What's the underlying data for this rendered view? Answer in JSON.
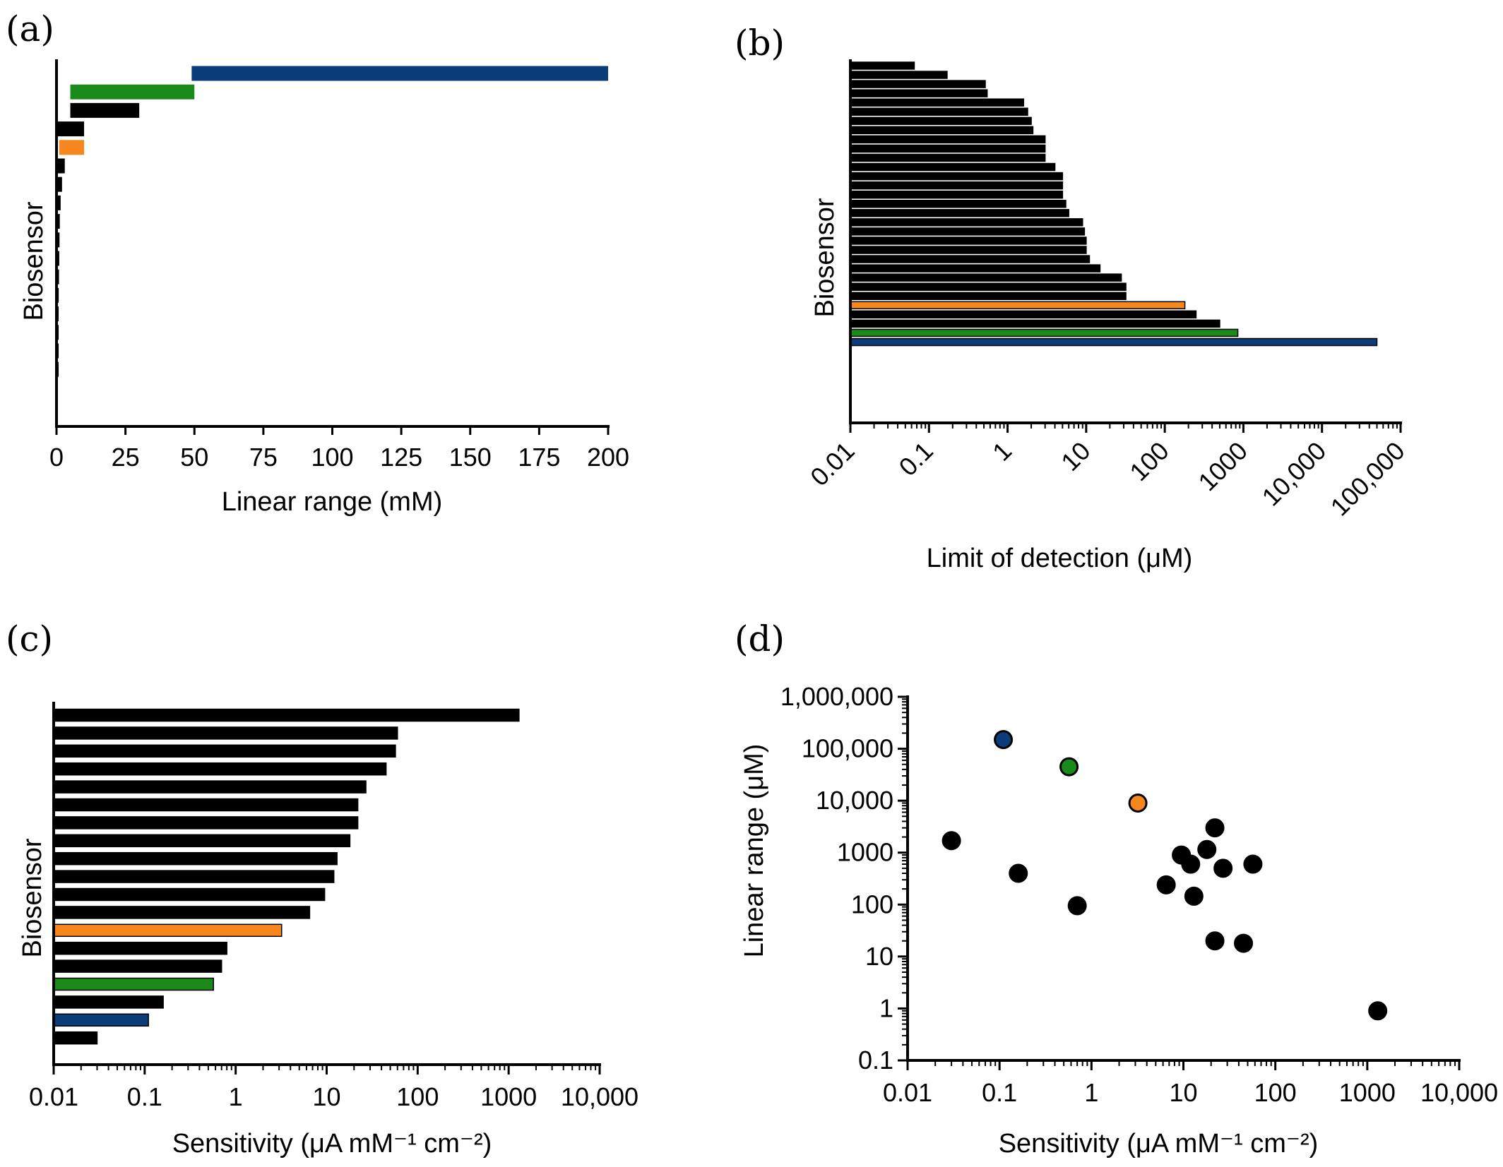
{
  "colors": {
    "default": "#000000",
    "blue": "#0a3d7a",
    "green": "#1a8a1a",
    "orange": "#f7871c"
  },
  "chart_data": [
    {
      "panel": "(a)",
      "type": "bar",
      "orientation": "horizontal",
      "floating": true,
      "xlabel": "Linear range (mM)",
      "ylabel": "Biosensor",
      "xlim": [
        0,
        200
      ],
      "xticks": [
        "0",
        "25",
        "50",
        "75",
        "100",
        "125",
        "150",
        "175",
        "200"
      ],
      "xtick_values": [
        0,
        25,
        50,
        75,
        100,
        125,
        150,
        175,
        200
      ],
      "scale": "linear",
      "bars": [
        {
          "start": 49,
          "end": 200,
          "color": "blue"
        },
        {
          "start": 5,
          "end": 50,
          "color": "green"
        },
        {
          "start": 5,
          "end": 30,
          "color": "default"
        },
        {
          "start": 0.01,
          "end": 10,
          "color": "default"
        },
        {
          "start": 1,
          "end": 10,
          "color": "orange"
        },
        {
          "start": 0.01,
          "end": 3,
          "color": "default"
        },
        {
          "start": 0.01,
          "end": 2,
          "color": "default"
        },
        {
          "start": 0.01,
          "end": 1.5,
          "color": "default"
        },
        {
          "start": 0.01,
          "end": 1.2,
          "color": "default"
        },
        {
          "start": 0.01,
          "end": 1.1,
          "color": "default"
        },
        {
          "start": 0.01,
          "end": 1,
          "color": "default"
        },
        {
          "start": 0.01,
          "end": 0.9,
          "color": "default"
        },
        {
          "start": 0.01,
          "end": 0.8,
          "color": "default"
        },
        {
          "start": 0.01,
          "end": 0.7,
          "color": "default"
        },
        {
          "start": 0.01,
          "end": 0.6,
          "color": "default"
        },
        {
          "start": 0.01,
          "end": 0.5,
          "color": "default"
        },
        {
          "start": 0.01,
          "end": 0.5,
          "color": "default"
        }
      ]
    },
    {
      "panel": "(b)",
      "type": "bar",
      "orientation": "horizontal",
      "xlabel": "Limit of detection (μM)",
      "ylabel": "Biosensor",
      "scale": "log",
      "xlim": [
        0.01,
        100000
      ],
      "xticks": [
        "0.01",
        "0.1",
        "1",
        "10",
        "100",
        "1000",
        "10,000",
        "100,000"
      ],
      "xtick_values": [
        0.01,
        0.1,
        1,
        10,
        100,
        1000,
        10000,
        100000
      ],
      "xtick_rotation": -45,
      "values": [
        0.065,
        0.17,
        0.52,
        0.55,
        1.6,
        1.8,
        2.0,
        2.1,
        3.0,
        3.0,
        3.0,
        4.0,
        5.0,
        5.0,
        5.0,
        5.5,
        6.0,
        9.0,
        9.5,
        10,
        10,
        11,
        15,
        28,
        32,
        32,
        180,
        250,
        500,
        850,
        50000
      ],
      "colors": [
        "default",
        "default",
        "default",
        "default",
        "default",
        "default",
        "default",
        "default",
        "default",
        "default",
        "default",
        "default",
        "default",
        "default",
        "default",
        "default",
        "default",
        "default",
        "default",
        "default",
        "default",
        "default",
        "default",
        "default",
        "default",
        "default",
        "orange",
        "default",
        "default",
        "green",
        "blue"
      ]
    },
    {
      "panel": "(c)",
      "type": "bar",
      "orientation": "horizontal",
      "xlabel": "Sensitivity (μA mM⁻¹ cm⁻²)",
      "ylabel": "Biosensor",
      "scale": "log",
      "xlim": [
        0.01,
        10000
      ],
      "xticks": [
        "0.01",
        "0.1",
        "1",
        "10",
        "100",
        "1000",
        "10,000"
      ],
      "xtick_values": [
        0.01,
        0.1,
        1,
        10,
        100,
        1000,
        10000
      ],
      "values": [
        1300,
        60,
        57,
        45,
        27,
        22,
        22,
        18,
        13,
        12,
        9.5,
        6.5,
        3.2,
        0.8,
        0.7,
        0.57,
        0.16,
        0.11,
        0.03
      ],
      "colors": [
        "default",
        "default",
        "default",
        "default",
        "default",
        "default",
        "default",
        "default",
        "default",
        "default",
        "default",
        "default",
        "orange",
        "default",
        "default",
        "green",
        "default",
        "blue",
        "default"
      ]
    },
    {
      "panel": "(d)",
      "type": "scatter",
      "xlabel": "Sensitivity (μA mM⁻¹ cm⁻²)",
      "ylabel": "Linear range (μM)",
      "xscale": "log",
      "yscale": "log",
      "xlim": [
        0.01,
        10000
      ],
      "ylim": [
        0.1,
        1000000
      ],
      "xticks": [
        "0.01",
        "0.1",
        "1",
        "10",
        "100",
        "1000",
        "10,000"
      ],
      "xtick_values": [
        0.01,
        0.1,
        1,
        10,
        100,
        1000,
        10000
      ],
      "yticks": [
        "0.1",
        "1",
        "10",
        "100",
        "1000",
        "10,000",
        "100,000",
        "1,000,000"
      ],
      "ytick_values": [
        0.1,
        1,
        10,
        100,
        1000,
        10000,
        100000,
        1000000
      ],
      "points": [
        {
          "x": 0.11,
          "y": 150000,
          "color": "blue"
        },
        {
          "x": 0.57,
          "y": 45000,
          "color": "green"
        },
        {
          "x": 3.2,
          "y": 9000,
          "color": "orange"
        },
        {
          "x": 0.03,
          "y": 1700,
          "color": "default"
        },
        {
          "x": 0.16,
          "y": 400,
          "color": "default"
        },
        {
          "x": 0.7,
          "y": 95,
          "color": "default"
        },
        {
          "x": 6.5,
          "y": 240,
          "color": "default"
        },
        {
          "x": 9.5,
          "y": 900,
          "color": "default"
        },
        {
          "x": 12,
          "y": 600,
          "color": "default"
        },
        {
          "x": 13,
          "y": 145,
          "color": "default"
        },
        {
          "x": 18,
          "y": 1150,
          "color": "default"
        },
        {
          "x": 22,
          "y": 3000,
          "color": "default"
        },
        {
          "x": 22,
          "y": 20,
          "color": "default"
        },
        {
          "x": 27,
          "y": 500,
          "color": "default"
        },
        {
          "x": 45,
          "y": 18,
          "color": "default"
        },
        {
          "x": 57,
          "y": 600,
          "color": "default"
        },
        {
          "x": 1300,
          "y": 0.9,
          "color": "default"
        }
      ]
    }
  ]
}
